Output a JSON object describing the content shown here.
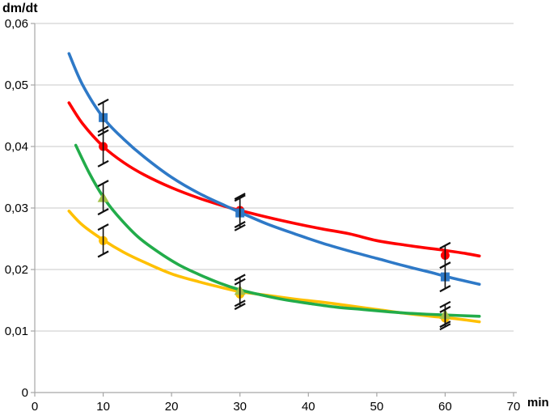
{
  "chart": {
    "y_axis_title": "dm/dt",
    "x_axis_title": "min"
  },
  "chart_data": {
    "type": "scatter",
    "title": "",
    "ylabel": "dm/dt",
    "xlabel": "min",
    "xlim": [
      0,
      70
    ],
    "ylim": [
      0,
      0.06
    ],
    "x_ticks": [
      0,
      10,
      20,
      30,
      40,
      50,
      60,
      70
    ],
    "y_ticks": [
      {
        "value": 0,
        "label": "0"
      },
      {
        "value": 0.01,
        "label": "0,01"
      },
      {
        "value": 0.02,
        "label": "0,02"
      },
      {
        "value": 0.03,
        "label": "0,03"
      },
      {
        "value": 0.04,
        "label": "0,04"
      },
      {
        "value": 0.05,
        "label": "0,05"
      },
      {
        "value": 0.06,
        "label": "0,06"
      }
    ],
    "decimal_separator": ",",
    "grid": "horizontal-only",
    "legend": "none",
    "colors": {
      "gridline": "#C9C9C9",
      "axis": "#A6A6A6",
      "error_bar": "#111111"
    },
    "series": [
      {
        "name": "yellow",
        "line_color": "#FFC000",
        "marker": "circle",
        "marker_color": "#FFC000",
        "points": [
          {
            "x": 10,
            "y": 0.0247,
            "err": 0.0022
          },
          {
            "x": 30,
            "y": 0.016,
            "err": 0.002
          },
          {
            "x": 60,
            "y": 0.0121,
            "err": 0.0014
          }
        ],
        "trend": [
          [
            5,
            0.0295
          ],
          [
            7,
            0.0272
          ],
          [
            10,
            0.0248
          ],
          [
            13,
            0.0228
          ],
          [
            16,
            0.0212
          ],
          [
            20,
            0.0193
          ],
          [
            24,
            0.018
          ],
          [
            28,
            0.0169
          ],
          [
            30,
            0.0164
          ],
          [
            34,
            0.0158
          ],
          [
            38,
            0.0152
          ],
          [
            42,
            0.0147
          ],
          [
            46,
            0.0141
          ],
          [
            50,
            0.0135
          ],
          [
            54,
            0.0129
          ],
          [
            58,
            0.0124
          ],
          [
            60,
            0.0122
          ],
          [
            63,
            0.0118
          ],
          [
            65,
            0.0115
          ]
        ]
      },
      {
        "name": "green",
        "line_color": "#22AC4A",
        "marker": "triangle",
        "marker_color": "#A5C249",
        "points": [
          {
            "x": 10,
            "y": 0.0317,
            "err": 0.0023
          },
          {
            "x": 30,
            "y": 0.0166,
            "err": 0.0021
          },
          {
            "x": 60,
            "y": 0.0127,
            "err": 0.0016
          }
        ],
        "trend": [
          [
            6,
            0.0402
          ],
          [
            8,
            0.0356
          ],
          [
            10,
            0.0318
          ],
          [
            12,
            0.0289
          ],
          [
            15,
            0.0254
          ],
          [
            18,
            0.0229
          ],
          [
            21,
            0.0208
          ],
          [
            24,
            0.0192
          ],
          [
            27,
            0.0178
          ],
          [
            30,
            0.0167
          ],
          [
            33,
            0.0159
          ],
          [
            36,
            0.0152
          ],
          [
            40,
            0.0145
          ],
          [
            44,
            0.0139
          ],
          [
            48,
            0.0135
          ],
          [
            52,
            0.0131
          ],
          [
            56,
            0.0128
          ],
          [
            60,
            0.0126
          ],
          [
            65,
            0.0124
          ]
        ]
      },
      {
        "name": "red",
        "line_color": "#FF0000",
        "marker": "circle",
        "marker_color": "#FF0000",
        "points": [
          {
            "x": 10,
            "y": 0.04,
            "err": 0.0028
          },
          {
            "x": 30,
            "y": 0.0296,
            "err": 0.0023
          },
          {
            "x": 60,
            "y": 0.0223,
            "err": 0.0016
          }
        ],
        "trend": [
          [
            5,
            0.0471
          ],
          [
            7,
            0.0437
          ],
          [
            10,
            0.04
          ],
          [
            13,
            0.0374
          ],
          [
            16,
            0.0354
          ],
          [
            20,
            0.0333
          ],
          [
            24,
            0.0316
          ],
          [
            28,
            0.0302
          ],
          [
            30,
            0.0296
          ],
          [
            34,
            0.0285
          ],
          [
            38,
            0.0275
          ],
          [
            42,
            0.0266
          ],
          [
            46,
            0.0258
          ],
          [
            50,
            0.0247
          ],
          [
            54,
            0.024
          ],
          [
            58,
            0.0234
          ],
          [
            60,
            0.0231
          ],
          [
            63,
            0.0226
          ],
          [
            65,
            0.0222
          ]
        ]
      },
      {
        "name": "blue",
        "line_color": "#2E79C7",
        "marker": "square",
        "marker_color": "#2E79C7",
        "points": [
          {
            "x": 10,
            "y": 0.0447,
            "err": 0.0025
          },
          {
            "x": 30,
            "y": 0.0292,
            "err": 0.0024
          },
          {
            "x": 60,
            "y": 0.0188,
            "err": 0.0019
          }
        ],
        "trend": [
          [
            5,
            0.0551
          ],
          [
            7,
            0.05
          ],
          [
            10,
            0.0447
          ],
          [
            13,
            0.0412
          ],
          [
            16,
            0.0383
          ],
          [
            20,
            0.035
          ],
          [
            24,
            0.0324
          ],
          [
            28,
            0.0303
          ],
          [
            30,
            0.0293
          ],
          [
            34,
            0.0274
          ],
          [
            38,
            0.0258
          ],
          [
            42,
            0.0243
          ],
          [
            46,
            0.023
          ],
          [
            50,
            0.0218
          ],
          [
            54,
            0.0206
          ],
          [
            58,
            0.0195
          ],
          [
            60,
            0.0189
          ],
          [
            63,
            0.0181
          ],
          [
            65,
            0.0176
          ]
        ]
      }
    ]
  }
}
